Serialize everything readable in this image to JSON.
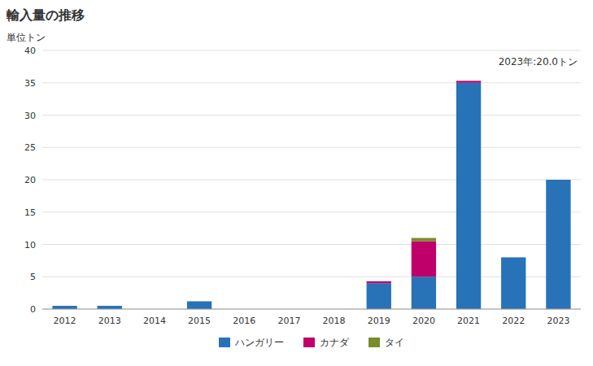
{
  "chart_data": {
    "type": "bar",
    "stacked": true,
    "title": "輸入量の推移",
    "ylabel": "単位トン",
    "annotation": "2023年:20.0トン",
    "categories": [
      "2012",
      "2013",
      "2014",
      "2015",
      "2016",
      "2017",
      "2018",
      "2019",
      "2020",
      "2021",
      "2022",
      "2023"
    ],
    "series": [
      {
        "name": "ハンガリー",
        "color": "#2872b8",
        "values": [
          0.5,
          0.5,
          0,
          1.2,
          0,
          0,
          0,
          4.0,
          5.0,
          35.0,
          8.0,
          20.0
        ]
      },
      {
        "name": "カナダ",
        "color": "#c0006a",
        "values": [
          0,
          0,
          0,
          0,
          0,
          0,
          0,
          0.3,
          5.5,
          0.3,
          0,
          0
        ]
      },
      {
        "name": "タイ",
        "color": "#7a8c2a",
        "values": [
          0,
          0,
          0,
          0,
          0,
          0,
          0,
          0,
          0.5,
          0,
          0,
          0
        ]
      }
    ],
    "ylim": [
      0,
      40
    ],
    "yticks": [
      0,
      5,
      10,
      15,
      20,
      25,
      30,
      35,
      40
    ],
    "grid": true,
    "legend": "bottom"
  }
}
